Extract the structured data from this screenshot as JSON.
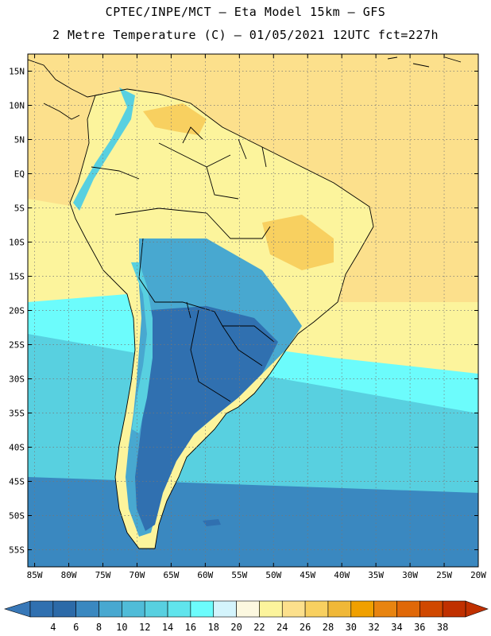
{
  "title_line1": "CPTEC/INPE/MCT –  Eta Model 15km – GFS",
  "title_line2": "2 Metre Temperature (C) – 01/05/2021 12UTC fct=227h",
  "map": {
    "lat_labels": [
      "15N",
      "10N",
      "5N",
      "EQ",
      "5S",
      "10S",
      "15S",
      "20S",
      "25S",
      "30S",
      "35S",
      "40S",
      "45S",
      "50S",
      "55S"
    ],
    "lat_values": [
      15,
      10,
      5,
      0,
      -5,
      -10,
      -15,
      -20,
      -25,
      -30,
      -35,
      -40,
      -45,
      -50,
      -55
    ],
    "lon_labels": [
      "85W",
      "80W",
      "75W",
      "70W",
      "65W",
      "60W",
      "55W",
      "50W",
      "45W",
      "40W",
      "35W",
      "30W",
      "25W",
      "20W"
    ],
    "lon_values": [
      -85,
      -80,
      -75,
      -70,
      -65,
      -60,
      -55,
      -50,
      -45,
      -40,
      -35,
      -30,
      -25,
      -20
    ],
    "lat_range": [
      -57.5,
      17.5
    ],
    "lon_range": [
      -86,
      -20
    ],
    "grid": "dotted"
  },
  "colorbar": {
    "labels": [
      "4",
      "6",
      "8",
      "10",
      "12",
      "14",
      "16",
      "18",
      "20",
      "22",
      "24",
      "26",
      "28",
      "30",
      "32",
      "34",
      "36",
      "38"
    ],
    "colors": [
      "#3070b0",
      "#2c6aa8",
      "#3a88c0",
      "#48a8d0",
      "#50bcd8",
      "#58d0e0",
      "#60e4ec",
      "#6cfcfc",
      "#d4f4fc",
      "#fcf8e0",
      "#fcf49c",
      "#fce08c",
      "#f8d060",
      "#f0b838",
      "#f0a000",
      "#e88410",
      "#e06808",
      "#d04800",
      "#c03000"
    ],
    "under_color": "#3878b8",
    "over_color": "#c03000"
  },
  "fields": {
    "ocean_south": "#58d0e0",
    "ocean_cold": "#3a88c0",
    "ocean_cyan": "#6cfcfc",
    "ocean_warm": "#fce08c",
    "ocean_pale": "#fcf49c",
    "land_warm": "#fcf49c",
    "land_hot": "#f8d060",
    "land_cold": "#3070b0",
    "land_cool": "#48a8d0",
    "andes": "#58d0e0"
  }
}
